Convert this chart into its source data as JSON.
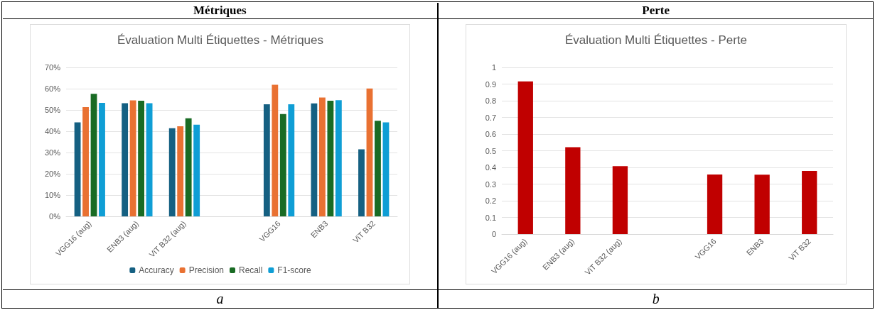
{
  "chart_data": [
    {
      "type": "bar",
      "title": "Évaluation Multi Étiquettes - Métriques",
      "annotations": [
        "Métriques",
        "a"
      ],
      "categories": [
        "VGG16 (aug)",
        "ENB3 (aug)",
        "ViT B32 (aug)",
        null,
        "VGG16",
        "ENB3",
        "ViT B32"
      ],
      "series": [
        {
          "name": "Accuracy",
          "color": "#156082",
          "values": [
            44.2,
            53.2,
            41.4,
            null,
            52.7,
            53.1,
            31.5
          ]
        },
        {
          "name": "Precision",
          "color": "#e97132",
          "values": [
            51.3,
            54.5,
            42.3,
            null,
            61.8,
            55.8,
            60.1
          ]
        },
        {
          "name": "Recall",
          "color": "#196b24",
          "values": [
            57.6,
            54.3,
            46.1,
            null,
            48.1,
            54.3,
            44.9
          ]
        },
        {
          "name": "F1-score",
          "color": "#0f9ed5",
          "values": [
            53.3,
            53.2,
            43.1,
            null,
            52.7,
            54.6,
            44.2
          ]
        }
      ],
      "ylim": [
        0,
        70
      ],
      "yticks": [
        {
          "value": 0,
          "label": "0%"
        },
        {
          "value": 10,
          "label": "10%"
        },
        {
          "value": 20,
          "label": "20%"
        },
        {
          "value": 30,
          "label": "30%"
        },
        {
          "value": 40,
          "label": "40%"
        },
        {
          "value": 50,
          "label": "50%"
        },
        {
          "value": 60,
          "label": "60%"
        },
        {
          "value": 70,
          "label": "70%"
        }
      ],
      "grid": "y",
      "legend": "bottom"
    },
    {
      "type": "bar",
      "title": "Évaluation Multi Étiquettes - Perte",
      "annotations": [
        "Perte",
        "b"
      ],
      "categories": [
        "VGG16 (aug)",
        "ENB3 (aug)",
        "ViT B32 (aug)",
        null,
        "VGG16",
        "ENB3",
        "ViT B32"
      ],
      "values": [
        0.916,
        0.521,
        0.407,
        null,
        0.357,
        0.356,
        0.379
      ],
      "color": "#c00000",
      "ylim": [
        0,
        1
      ],
      "yticks": [
        0,
        0.1,
        0.2,
        0.3,
        0.4,
        0.5,
        0.6,
        0.7,
        0.8,
        0.9,
        1
      ],
      "grid": "y"
    }
  ]
}
